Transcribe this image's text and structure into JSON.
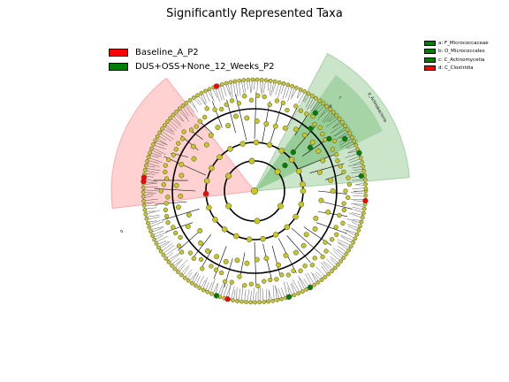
{
  "title": "Significantly Represented Taxa",
  "legend": [
    {
      "label": "Baseline_A_P2",
      "color": "#ff0000"
    },
    {
      "label": "DUS+OSS+None_12_Weeks_P2",
      "color": "#008000"
    }
  ],
  "clade_legend": [
    {
      "label": "a: F_Micrococcaceae",
      "color": "#008000"
    },
    {
      "label": "b: O_Micrococcales",
      "color": "#008000"
    },
    {
      "label": "c: C_Actinomycetia",
      "color": "#008000"
    },
    {
      "label": "d: C_Clostridia",
      "color": "#ff0000"
    }
  ],
  "sector_labels": {
    "green_outer": "p_Actinobacteria",
    "green_mid": "c",
    "green_inner": "b",
    "red_outer": "d"
  },
  "colors": {
    "node_default": "#c8c81e",
    "node_green": "#008000",
    "node_red": "#ff0000",
    "sector_green": "#7cbf7c",
    "sector_red": "#ff9a9a"
  }
}
